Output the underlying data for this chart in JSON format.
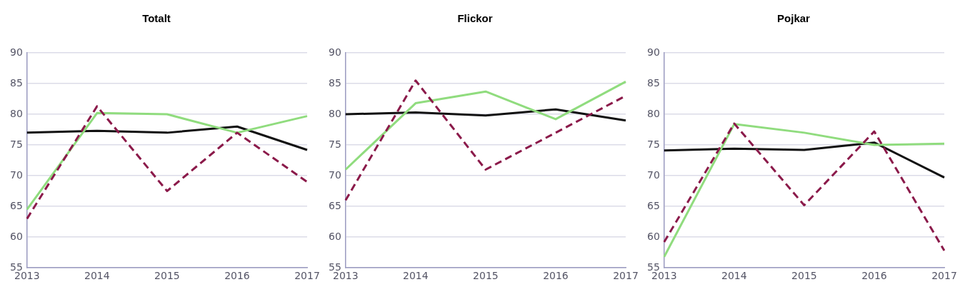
{
  "chart_data": [
    {
      "type": "line",
      "title": "Totalt",
      "categories": [
        "2013",
        "2014",
        "2015",
        "2016",
        "2017"
      ],
      "ylim": [
        55,
        90
      ],
      "yticks": [
        55,
        60,
        65,
        70,
        75,
        80,
        85,
        90
      ],
      "grid": "y",
      "legend": false,
      "series": [
        {
          "color": "#8b1a4a",
          "line_style": "dashed",
          "values": [
            63,
            81.3,
            67.5,
            77,
            69
          ]
        },
        {
          "color": "#90dc7e",
          "line_style": "solid",
          "values": [
            64.5,
            80.2,
            80,
            77,
            79.7
          ]
        },
        {
          "color": "#111111",
          "line_style": "solid",
          "values": [
            77,
            77.3,
            77,
            78,
            74.2
          ]
        }
      ]
    },
    {
      "type": "line",
      "title": "Flickor",
      "categories": [
        "2013",
        "2014",
        "2015",
        "2016",
        "2017"
      ],
      "ylim": [
        55,
        90
      ],
      "yticks": [
        55,
        60,
        65,
        70,
        75,
        80,
        85,
        90
      ],
      "grid": "y",
      "legend": false,
      "series": [
        {
          "color": "#8b1a4a",
          "line_style": "dashed",
          "values": [
            66,
            85.5,
            71,
            77,
            83
          ]
        },
        {
          "color": "#90dc7e",
          "line_style": "solid",
          "values": [
            71,
            81.8,
            83.7,
            79.2,
            85.3
          ]
        },
        {
          "color": "#111111",
          "line_style": "solid",
          "values": [
            80,
            80.3,
            79.8,
            80.8,
            79
          ]
        }
      ]
    },
    {
      "type": "line",
      "title": "Pojkar",
      "categories": [
        "2013",
        "2014",
        "2015",
        "2016",
        "2017"
      ],
      "ylim": [
        55,
        90
      ],
      "yticks": [
        55,
        60,
        65,
        70,
        75,
        80,
        85,
        90
      ],
      "grid": "y",
      "legend": false,
      "series": [
        {
          "color": "#8b1a4a",
          "line_style": "dashed",
          "values": [
            59.2,
            78.5,
            65.2,
            77.2,
            57.8
          ]
        },
        {
          "color": "#90dc7e",
          "line_style": "solid",
          "values": [
            56.8,
            78.4,
            77,
            75,
            75.2
          ]
        },
        {
          "color": "#111111",
          "line_style": "solid",
          "values": [
            74.1,
            74.4,
            74.2,
            75.4,
            69.7
          ]
        }
      ]
    }
  ]
}
